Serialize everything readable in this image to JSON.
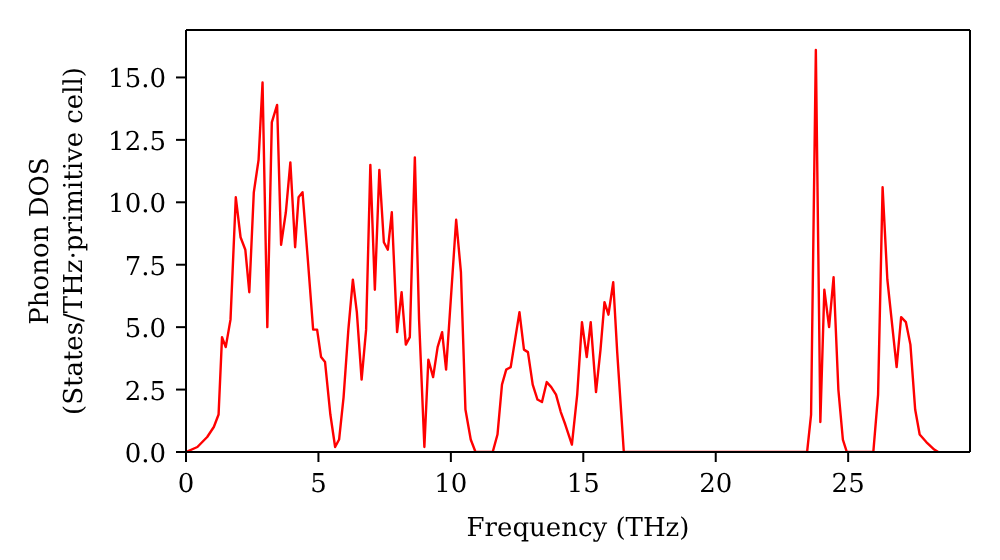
{
  "chart_data": {
    "type": "line",
    "xlabel": "Frequency (THz)",
    "ylabel": "Phonon DOS\n(States/THz·primitive cell)",
    "xlim": [
      0,
      29.6
    ],
    "xticks": [
      0,
      5,
      10,
      15,
      20,
      25
    ],
    "ylim": [
      0,
      16.9
    ],
    "yticks": [
      {
        "value": 0,
        "label": "0.0"
      },
      {
        "value": 2.5,
        "label": "2.5"
      },
      {
        "value": 5,
        "label": "5.0"
      },
      {
        "value": 7.5,
        "label": "7.5"
      },
      {
        "value": 10,
        "label": "10.0"
      },
      {
        "value": 12.5,
        "label": "12.5"
      },
      {
        "value": 15,
        "label": "15.0"
      }
    ],
    "marker": "none",
    "line_style": "solid",
    "series": [
      {
        "color": "#ff0000",
        "x": [
          0,
          0.43,
          0.8,
          1.05,
          1.23,
          1.36,
          1.5,
          1.68,
          1.88,
          2.06,
          2.24,
          2.39,
          2.56,
          2.74,
          2.89,
          3.07,
          3.24,
          3.44,
          3.59,
          3.77,
          3.94,
          4.12,
          4.25,
          4.4,
          4.6,
          4.8,
          4.95,
          5.1,
          5.25,
          5.45,
          5.63,
          5.78,
          5.95,
          6.13,
          6.3,
          6.45,
          6.63,
          6.8,
          6.96,
          7.13,
          7.3,
          7.47,
          7.62,
          7.77,
          7.97,
          8.14,
          8.3,
          8.45,
          8.64,
          8.8,
          9.0,
          9.15,
          9.33,
          9.5,
          9.67,
          9.82,
          10.2,
          10.38,
          10.55,
          10.75,
          10.93,
          11.58,
          11.76,
          11.93,
          12.09,
          12.26,
          12.44,
          12.59,
          12.76,
          12.91,
          13.09,
          13.27,
          13.44,
          13.62,
          13.79,
          13.97,
          14.15,
          14.32,
          14.57,
          14.77,
          14.95,
          15.13,
          15.28,
          15.48,
          15.65,
          15.8,
          15.95,
          16.13,
          16.28,
          16.53,
          23.45,
          23.6,
          23.78,
          23.95,
          24.1,
          24.28,
          24.45,
          24.63,
          24.8,
          24.95,
          25.95,
          26.13,
          26.3,
          26.48,
          26.65,
          26.83,
          27.0,
          27.18,
          27.35,
          27.53,
          27.7,
          27.95,
          28.25,
          28.4
        ],
        "values": [
          0,
          0.2,
          0.6,
          1.0,
          1.5,
          4.6,
          4.2,
          5.3,
          10.2,
          8.6,
          8.1,
          6.4,
          10.4,
          11.7,
          14.8,
          5.0,
          13.2,
          13.9,
          8.3,
          9.6,
          11.6,
          8.2,
          10.2,
          10.4,
          7.7,
          4.9,
          4.9,
          3.8,
          3.6,
          1.5,
          0.2,
          0.5,
          2.2,
          4.9,
          6.9,
          5.6,
          2.9,
          4.9,
          11.5,
          6.5,
          11.3,
          8.4,
          8.1,
          9.6,
          4.8,
          6.4,
          4.3,
          4.6,
          11.8,
          5.3,
          0.2,
          3.7,
          3.0,
          4.2,
          4.8,
          3.3,
          9.3,
          7.2,
          1.7,
          0.5,
          0,
          0,
          0.7,
          2.7,
          3.3,
          3.4,
          4.6,
          5.6,
          4.1,
          4.0,
          2.7,
          2.1,
          2.0,
          2.8,
          2.6,
          2.3,
          1.6,
          1.1,
          0.3,
          2.3,
          5.2,
          3.8,
          5.2,
          2.4,
          4.1,
          6.0,
          5.5,
          6.8,
          4.0,
          0,
          0,
          1.5,
          16.1,
          1.2,
          6.5,
          5.0,
          7.0,
          2.5,
          0.5,
          0,
          0,
          2.3,
          10.6,
          6.9,
          5.2,
          3.4,
          5.4,
          5.2,
          4.3,
          1.7,
          0.7,
          0.4,
          0.1,
          0
        ]
      }
    ]
  }
}
